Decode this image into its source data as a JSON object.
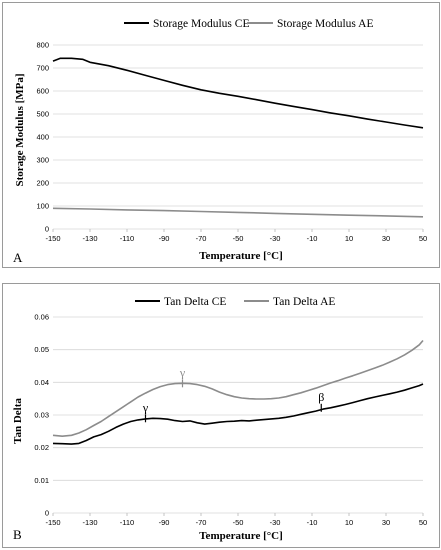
{
  "chart_data": [
    {
      "panel": "A",
      "type": "line",
      "xlabel": "Temperature [°C]",
      "ylabel": "Storage Modulus [MPa]",
      "xlim": [
        -150,
        50
      ],
      "ylim": [
        0,
        800
      ],
      "x_ticks": [
        -150,
        -130,
        -110,
        -90,
        -70,
        -50,
        -30,
        -10,
        10,
        30,
        50
      ],
      "y_ticks": [
        0,
        100,
        200,
        300,
        400,
        500,
        600,
        700,
        800
      ],
      "grid": "horizontal",
      "legend_position": "top",
      "series": [
        {
          "name": "Storage Modulus CE",
          "color": "#000000",
          "x": [
            -150,
            -146,
            -140,
            -134,
            -130,
            -120,
            -110,
            -100,
            -90,
            -80,
            -70,
            -60,
            -50,
            -40,
            -30,
            -20,
            -10,
            0,
            10,
            20,
            30,
            40,
            50
          ],
          "y": [
            730,
            742,
            742,
            738,
            725,
            710,
            690,
            668,
            646,
            625,
            605,
            590,
            577,
            562,
            547,
            533,
            519,
            505,
            492,
            478,
            465,
            452,
            440
          ]
        },
        {
          "name": "Storage Modulus AE",
          "color": "#8c8c8c",
          "x": [
            -150,
            -130,
            -110,
            -90,
            -70,
            -50,
            -30,
            -10,
            10,
            30,
            50
          ],
          "y": [
            90,
            87,
            83,
            80,
            76,
            72,
            68,
            64,
            60,
            57,
            53
          ]
        }
      ]
    },
    {
      "panel": "B",
      "type": "line",
      "xlabel": "Temperature [°C]",
      "ylabel": "Tan Delta",
      "xlim": [
        -150,
        50
      ],
      "ylim": [
        0,
        0.06
      ],
      "x_ticks": [
        -150,
        -130,
        -110,
        -90,
        -70,
        -50,
        -30,
        -10,
        10,
        30,
        50
      ],
      "y_ticks": [
        0,
        0.01,
        0.02,
        0.03,
        0.04,
        0.05,
        0.06
      ],
      "grid": "horizontal",
      "legend_position": "top",
      "series": [
        {
          "name": "Tan Delta CE",
          "color": "#000000",
          "x": [
            -150,
            -145,
            -140,
            -136,
            -132,
            -128,
            -124,
            -120,
            -116,
            -112,
            -108,
            -104,
            -100,
            -96,
            -92,
            -88,
            -84,
            -80,
            -76,
            -72,
            -68,
            -64,
            -60,
            -56,
            -52,
            -48,
            -44,
            -40,
            -36,
            -32,
            -28,
            -24,
            -20,
            -16,
            -12,
            -8,
            -4,
            0,
            4,
            8,
            12,
            16,
            20,
            24,
            28,
            32,
            36,
            40,
            44,
            48,
            50
          ],
          "y": [
            0.0213,
            0.0212,
            0.0211,
            0.0213,
            0.0222,
            0.0233,
            0.024,
            0.025,
            0.0262,
            0.0272,
            0.028,
            0.0285,
            0.0288,
            0.029,
            0.0289,
            0.0287,
            0.0283,
            0.028,
            0.0282,
            0.0276,
            0.0272,
            0.0275,
            0.0278,
            0.028,
            0.0281,
            0.0283,
            0.0282,
            0.0284,
            0.0286,
            0.0288,
            0.029,
            0.0293,
            0.0297,
            0.0302,
            0.0307,
            0.0312,
            0.0318,
            0.0322,
            0.0327,
            0.0332,
            0.0338,
            0.0344,
            0.035,
            0.0355,
            0.036,
            0.0365,
            0.037,
            0.0376,
            0.0383,
            0.039,
            0.0395
          ]
        },
        {
          "name": "Tan Delta AE",
          "color": "#8c8c8c",
          "x": [
            -150,
            -145,
            -140,
            -136,
            -132,
            -128,
            -124,
            -120,
            -116,
            -112,
            -108,
            -104,
            -100,
            -96,
            -92,
            -88,
            -84,
            -80,
            -76,
            -72,
            -68,
            -64,
            -60,
            -56,
            -52,
            -48,
            -44,
            -40,
            -36,
            -32,
            -28,
            -24,
            -20,
            -16,
            -12,
            -8,
            -4,
            0,
            4,
            8,
            12,
            16,
            20,
            24,
            28,
            32,
            36,
            40,
            44,
            48,
            50
          ],
          "y": [
            0.0238,
            0.0235,
            0.0238,
            0.0245,
            0.0255,
            0.0268,
            0.028,
            0.0295,
            0.031,
            0.0325,
            0.034,
            0.0355,
            0.0367,
            0.0378,
            0.0387,
            0.0393,
            0.0396,
            0.0397,
            0.0396,
            0.0393,
            0.0388,
            0.038,
            0.037,
            0.0362,
            0.0356,
            0.0352,
            0.035,
            0.0349,
            0.0349,
            0.035,
            0.0352,
            0.0356,
            0.0362,
            0.0368,
            0.0375,
            0.0382,
            0.039,
            0.0398,
            0.0405,
            0.0413,
            0.042,
            0.0428,
            0.0436,
            0.0444,
            0.0452,
            0.0462,
            0.0472,
            0.0484,
            0.0498,
            0.0515,
            0.0528
          ]
        }
      ],
      "annotations": [
        {
          "text": "γ",
          "series": "Tan Delta AE",
          "x": -80,
          "y": 0.0397,
          "color": "#8c8c8c"
        },
        {
          "text": "γ",
          "series": "Tan Delta CE",
          "x": -100,
          "y": 0.029,
          "color": "#000000"
        },
        {
          "text": "β",
          "series": "Tan Delta CE",
          "x": -5,
          "y": 0.0322,
          "color": "#000000"
        }
      ]
    }
  ]
}
